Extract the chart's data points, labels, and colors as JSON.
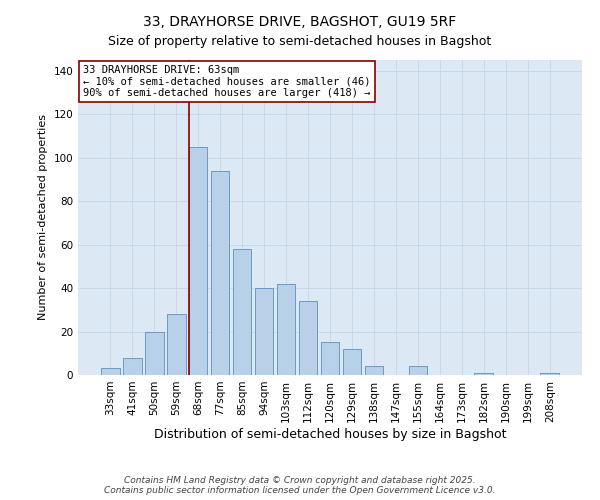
{
  "title": "33, DRAYHORSE DRIVE, BAGSHOT, GU19 5RF",
  "subtitle": "Size of property relative to semi-detached houses in Bagshot",
  "xlabel": "Distribution of semi-detached houses by size in Bagshot",
  "ylabel": "Number of semi-detached properties",
  "categories": [
    "33sqm",
    "41sqm",
    "50sqm",
    "59sqm",
    "68sqm",
    "77sqm",
    "85sqm",
    "94sqm",
    "103sqm",
    "112sqm",
    "120sqm",
    "129sqm",
    "138sqm",
    "147sqm",
    "155sqm",
    "164sqm",
    "173sqm",
    "182sqm",
    "190sqm",
    "199sqm",
    "208sqm"
  ],
  "bar_heights": [
    3,
    8,
    20,
    28,
    105,
    94,
    58,
    40,
    42,
    34,
    15,
    12,
    4,
    0,
    4,
    0,
    0,
    1,
    0,
    0,
    1
  ],
  "bar_color": "#b8d0e8",
  "bar_edge_color": "#5a8fc0",
  "vline_x_index": 4,
  "vline_color": "#8b0000",
  "annotation_box_color": "#8b0000",
  "annotation_line1": "33 DRAYHORSE DRIVE: 63sqm",
  "annotation_line2": "← 10% of semi-detached houses are smaller (46)",
  "annotation_line3": "90% of semi-detached houses are larger (418) →",
  "ylim": [
    0,
    145
  ],
  "yticks": [
    0,
    20,
    40,
    60,
    80,
    100,
    120,
    140
  ],
  "grid_color": "#c8d8e8",
  "bg_color": "#dce8f4",
  "footer": "Contains HM Land Registry data © Crown copyright and database right 2025.\nContains public sector information licensed under the Open Government Licence v3.0.",
  "title_fontsize": 10,
  "subtitle_fontsize": 9,
  "ylabel_fontsize": 8,
  "xlabel_fontsize": 9,
  "tick_fontsize": 7.5,
  "annotation_fontsize": 7.5,
  "footer_fontsize": 6.5
}
